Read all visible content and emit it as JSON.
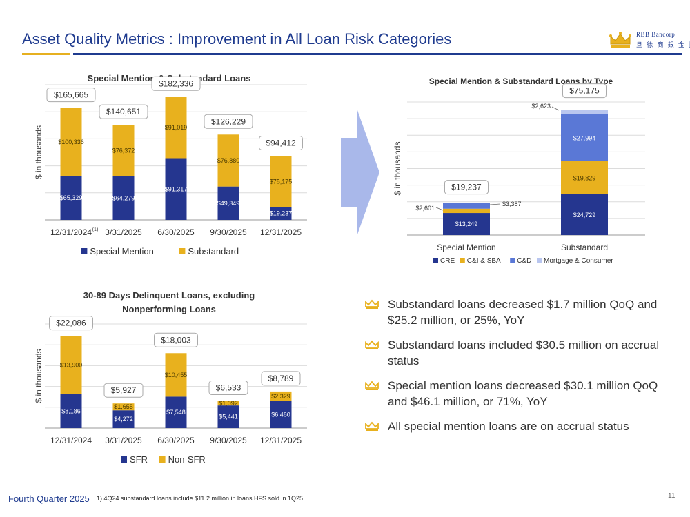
{
  "header": {
    "title": "Asset Quality Metrics : Improvement in All Loan Risk Categories",
    "logo_name": "RBB Bancorp",
    "logo_sub": "旦 徐 商 銀 金 控"
  },
  "colors": {
    "navy": "#25368f",
    "gold": "#e8b11e",
    "cd": "#5a78d6",
    "mortgage": "#b9c6ef",
    "title_blue": "#1f3b8f"
  },
  "chart_data": [
    {
      "id": "chart1",
      "type": "bar",
      "title": "Special Mention & Substandard  Loans",
      "ylabel": "$ in thousands",
      "categories": [
        "12/31/2024",
        "3/31/2025",
        "6/30/2025",
        "9/30/2025",
        "12/31/2025"
      ],
      "first_superscript": "(1)",
      "series": [
        {
          "name": "Special Mention",
          "values": [
            65329,
            64279,
            91317,
            49349,
            19237
          ],
          "labels": [
            "$65,329",
            "$64,279",
            "$91,317",
            "$49,349",
            "$19,237"
          ]
        },
        {
          "name": "Substandard",
          "values": [
            100336,
            76372,
            91019,
            76880,
            75175
          ],
          "labels": [
            "$100,336",
            "$76,372",
            "$91,019",
            "$76,880",
            "$75,175"
          ]
        }
      ],
      "totals": [
        "$165,665",
        "$140,651",
        "$182,336",
        "$126,229",
        "$94,412"
      ],
      "ylim": [
        0,
        200000
      ]
    },
    {
      "id": "chart2",
      "type": "bar",
      "title": "Special Mention & Substandard  Loans by Type",
      "ylabel": "$ in thousands",
      "categories": [
        "Special Mention",
        "Substandard"
      ],
      "series": [
        {
          "name": "CRE",
          "values": [
            13249,
            24729
          ],
          "labels": [
            "$13,249",
            "$24,729"
          ]
        },
        {
          "name": "C&I & SBA",
          "values": [
            2601,
            19829
          ],
          "labels": [
            "$2,601",
            "$19,829"
          ]
        },
        {
          "name": "C&D",
          "values": [
            3387,
            27994
          ],
          "labels": [
            "$3,387",
            "$27,994"
          ]
        },
        {
          "name": "Mortgage & Consumer",
          "values": [
            0,
            2623
          ],
          "labels": [
            "",
            "$2,623"
          ]
        }
      ],
      "totals": [
        "$19,237",
        "$75,175"
      ],
      "ylim": [
        0,
        80000
      ]
    },
    {
      "id": "chart3",
      "type": "bar",
      "title": "30-89 Days Delinquent Loans, excluding Nonperforming Loans",
      "title_lines": [
        "30-89 Days Delinquent Loans, excluding",
        "Nonperforming Loans"
      ],
      "ylabel": "$ in thousands",
      "categories": [
        "12/31/2024",
        "3/31/2025",
        "6/30/2025",
        "9/30/2025",
        "12/31/2025"
      ],
      "series": [
        {
          "name": "SFR",
          "values": [
            8186,
            4272,
            7548,
            5441,
            6460
          ],
          "labels": [
            "$8,186",
            "$4,272",
            "$7,548",
            "$5,441",
            "$6,460"
          ]
        },
        {
          "name": "Non-SFR",
          "values": [
            13900,
            1655,
            10455,
            1092,
            2329
          ],
          "labels": [
            "$13,900",
            "$1,655",
            "$10,455",
            "$1,092",
            "$2,329"
          ]
        }
      ],
      "totals": [
        "$22,086",
        "$5,927",
        "$18,003",
        "$6,533",
        "$8,789"
      ],
      "ylim": [
        0,
        25000
      ]
    }
  ],
  "bullets": [
    "Substandard loans decreased $1.7 million QoQ and $25.2 million, or 25%, YoY",
    "Substandard loans included $30.5 million on accrual status",
    "Special mention loans decreased $30.1 million QoQ and $46.1 million, or 71%, YoY",
    "All special mention loans are on accrual status"
  ],
  "footer": {
    "left": "Fourth Quarter 2025",
    "footnote": "1) 4Q24 substandard loans include $11.2 million in loans HFS sold in 1Q25",
    "page": "11"
  }
}
